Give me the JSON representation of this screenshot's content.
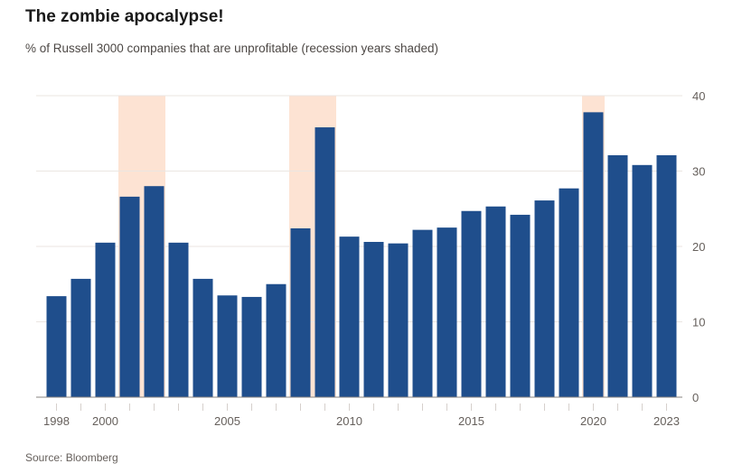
{
  "chart_data": {
    "type": "bar",
    "title": "The zombie apocalypse!",
    "subtitle": "% of Russell 3000 companies that are unprofitable (recession years shaded)",
    "source": "Source: Bloomberg",
    "categories": [
      1998,
      1999,
      2000,
      2001,
      2002,
      2003,
      2004,
      2005,
      2006,
      2007,
      2008,
      2009,
      2010,
      2011,
      2012,
      2013,
      2014,
      2015,
      2016,
      2017,
      2018,
      2019,
      2020,
      2021,
      2022,
      2023
    ],
    "values": [
      13.4,
      15.7,
      20.5,
      26.6,
      28.0,
      20.5,
      15.7,
      13.5,
      13.3,
      15.0,
      22.4,
      35.8,
      21.3,
      20.6,
      20.4,
      22.2,
      22.5,
      24.7,
      25.3,
      24.2,
      26.1,
      27.7,
      37.8,
      32.1,
      30.8,
      32.1
    ],
    "x_tick_labels": [
      "1998",
      "2000",
      "2005",
      "2010",
      "2015",
      "2020",
      "2023"
    ],
    "y_tick_labels": [
      "0",
      "10",
      "20",
      "30",
      "40"
    ],
    "ylim": [
      0,
      40
    ],
    "y_axis_position": "right",
    "grid": true,
    "recessions": [
      [
        2001,
        2002
      ],
      [
        2008,
        2009
      ],
      [
        2020,
        2020
      ]
    ],
    "colors": {
      "bar": "#1f4e8c",
      "recession": "#fde3d3",
      "grid": "#ebe6e2",
      "text": "#66605c"
    }
  }
}
